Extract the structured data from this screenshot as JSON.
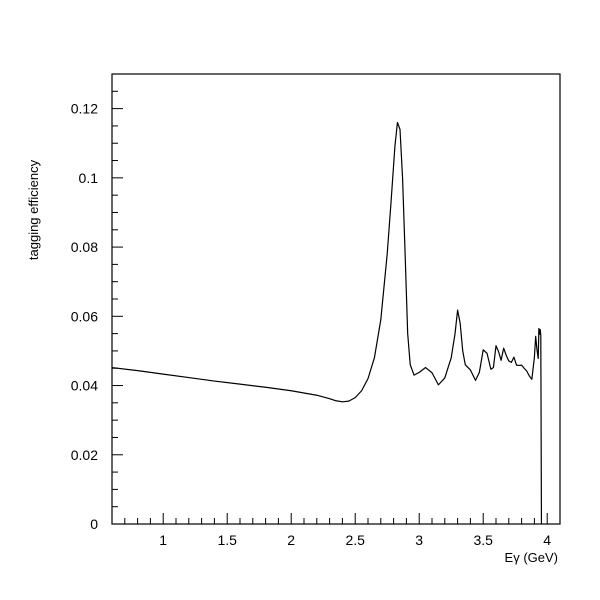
{
  "chart_data": {
    "type": "line",
    "title": "",
    "xlabel": "Eγ (GeV)",
    "ylabel": "tagging efficiency",
    "xlim": [
      0.6,
      4.1
    ],
    "ylim": [
      0,
      0.13
    ],
    "xticks": [
      1,
      1.5,
      2,
      2.5,
      3,
      3.5,
      4
    ],
    "xtick_labels": [
      "1",
      "1.5",
      "2",
      "2.5",
      "3",
      "3.5",
      "4"
    ],
    "yticks": [
      0,
      0.02,
      0.04,
      0.06,
      0.08,
      0.1,
      0.12
    ],
    "ytick_labels": [
      "0",
      "0.02",
      "0.04",
      "0.06",
      "0.08",
      "0.1",
      "0.12"
    ],
    "grid": false,
    "series": [
      {
        "x": [
          0.6,
          0.8,
          1.0,
          1.2,
          1.4,
          1.6,
          1.8,
          2.0,
          2.2,
          2.3,
          2.35,
          2.4,
          2.45,
          2.5,
          2.55,
          2.6,
          2.65,
          2.7,
          2.75,
          2.78,
          2.81,
          2.83,
          2.85,
          2.87,
          2.89,
          2.91,
          2.93,
          2.96,
          3.0,
          3.05,
          3.1,
          3.15,
          3.2,
          3.25,
          3.28,
          3.3,
          3.32,
          3.34,
          3.36,
          3.4,
          3.44,
          3.47,
          3.5,
          3.53,
          3.56,
          3.58,
          3.6,
          3.62,
          3.64,
          3.66,
          3.68,
          3.7,
          3.72,
          3.74,
          3.76,
          3.78,
          3.8,
          3.82,
          3.84,
          3.86,
          3.88,
          3.9,
          3.91,
          3.92,
          3.93,
          3.935,
          3.94,
          3.945,
          3.95,
          3.955
        ],
        "y": [
          0.0452,
          0.0443,
          0.0433,
          0.0423,
          0.0413,
          0.0404,
          0.0395,
          0.0385,
          0.0372,
          0.0362,
          0.0356,
          0.0353,
          0.0355,
          0.0365,
          0.0385,
          0.042,
          0.048,
          0.059,
          0.078,
          0.093,
          0.109,
          0.116,
          0.114,
          0.1,
          0.078,
          0.055,
          0.046,
          0.043,
          0.0438,
          0.0452,
          0.0437,
          0.0402,
          0.0422,
          0.048,
          0.055,
          0.0618,
          0.058,
          0.05,
          0.046,
          0.0445,
          0.0415,
          0.0438,
          0.0503,
          0.0493,
          0.0447,
          0.0452,
          0.0515,
          0.0498,
          0.0473,
          0.0508,
          0.0487,
          0.0471,
          0.0467,
          0.0482,
          0.0459,
          0.0458,
          0.0459,
          0.045,
          0.0442,
          0.0428,
          0.0418,
          0.0482,
          0.0542,
          0.0504,
          0.0478,
          0.0565,
          0.0548,
          0.0562,
          0.0545,
          0.0
        ]
      }
    ]
  }
}
